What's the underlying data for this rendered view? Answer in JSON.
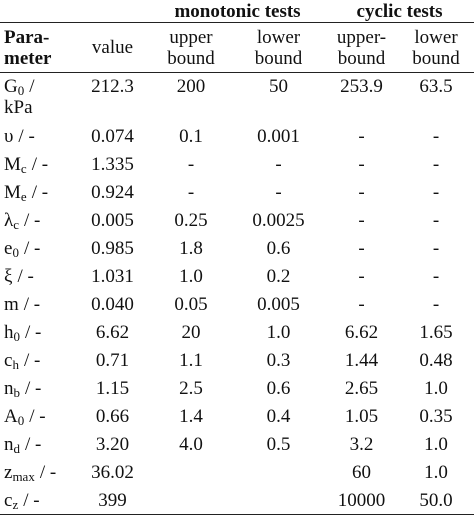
{
  "table": {
    "groups": [
      "monotonic tests",
      "cyclic tests"
    ],
    "header": [
      [
        "Para-",
        "meter"
      ],
      [
        "value"
      ],
      [
        "upper",
        "bound"
      ],
      [
        "lower",
        "bound"
      ],
      [
        "upper-",
        "bound"
      ],
      [
        "lower",
        "bound"
      ]
    ],
    "rows": [
      {
        "param": {
          "symbol": "G",
          "sub": "0",
          "unit": "/ kPa"
        },
        "cells": [
          "212.3",
          "200",
          "50",
          "253.9",
          "63.5"
        ]
      },
      {
        "param": {
          "symbol": "υ",
          "unit": "/ -"
        },
        "cells": [
          "0.074",
          "0.1",
          "0.001",
          "-",
          "-"
        ]
      },
      {
        "param": {
          "symbol": "M",
          "sub": "c",
          "unit": "/ -"
        },
        "cells": [
          "1.335",
          "-",
          "-",
          "-",
          "-"
        ]
      },
      {
        "param": {
          "symbol": "M",
          "sub": "e",
          "unit": "/ -"
        },
        "cells": [
          "0.924",
          "-",
          "-",
          "-",
          "-"
        ]
      },
      {
        "param": {
          "symbol": "λ",
          "sub": "c",
          "unit": "/ -"
        },
        "cells": [
          "0.005",
          "0.25",
          "0.0025",
          "-",
          "-"
        ]
      },
      {
        "param": {
          "symbol": "e",
          "sub": "0",
          "unit": "/ -"
        },
        "cells": [
          "0.985",
          "1.8",
          "0.6",
          "-",
          "-"
        ]
      },
      {
        "param": {
          "symbol": "ξ",
          "unit": "/ -"
        },
        "cells": [
          "1.031",
          "1.0",
          "0.2",
          "-",
          "-"
        ]
      },
      {
        "param": {
          "symbol": "m",
          "unit": "/ -"
        },
        "cells": [
          "0.040",
          "0.05",
          "0.005",
          "-",
          "-"
        ]
      },
      {
        "param": {
          "symbol": "h",
          "sub": "0",
          "unit": "/ -"
        },
        "cells": [
          "6.62",
          "20",
          "1.0",
          "6.62",
          "1.65"
        ]
      },
      {
        "param": {
          "symbol": "c",
          "sub": "h",
          "unit": "/ -"
        },
        "cells": [
          "0.71",
          "1.1",
          "0.3",
          "1.44",
          "0.48"
        ]
      },
      {
        "param": {
          "symbol": "n",
          "sub": "b",
          "unit": "/ -"
        },
        "cells": [
          "1.15",
          "2.5",
          "0.6",
          "2.65",
          "1.0"
        ]
      },
      {
        "param": {
          "symbol": "A",
          "sub": "0",
          "unit": "/ -"
        },
        "cells": [
          "0.66",
          "1.4",
          "0.4",
          "1.05",
          "0.35"
        ]
      },
      {
        "param": {
          "symbol": "n",
          "sub": "d",
          "unit": "/ -"
        },
        "cells": [
          "3.20",
          "4.0",
          "0.5",
          "3.2",
          "1.0"
        ]
      },
      {
        "param": {
          "symbol": "z",
          "sub": "max",
          "unit": "/ -"
        },
        "cells": [
          "36.02",
          null,
          null,
          "60",
          "1.0"
        ]
      },
      {
        "param": {
          "symbol": "c",
          "sub": "z",
          "unit": "/ -"
        },
        "cells": [
          "399",
          null,
          null,
          "10000",
          "50.0"
        ]
      }
    ]
  }
}
